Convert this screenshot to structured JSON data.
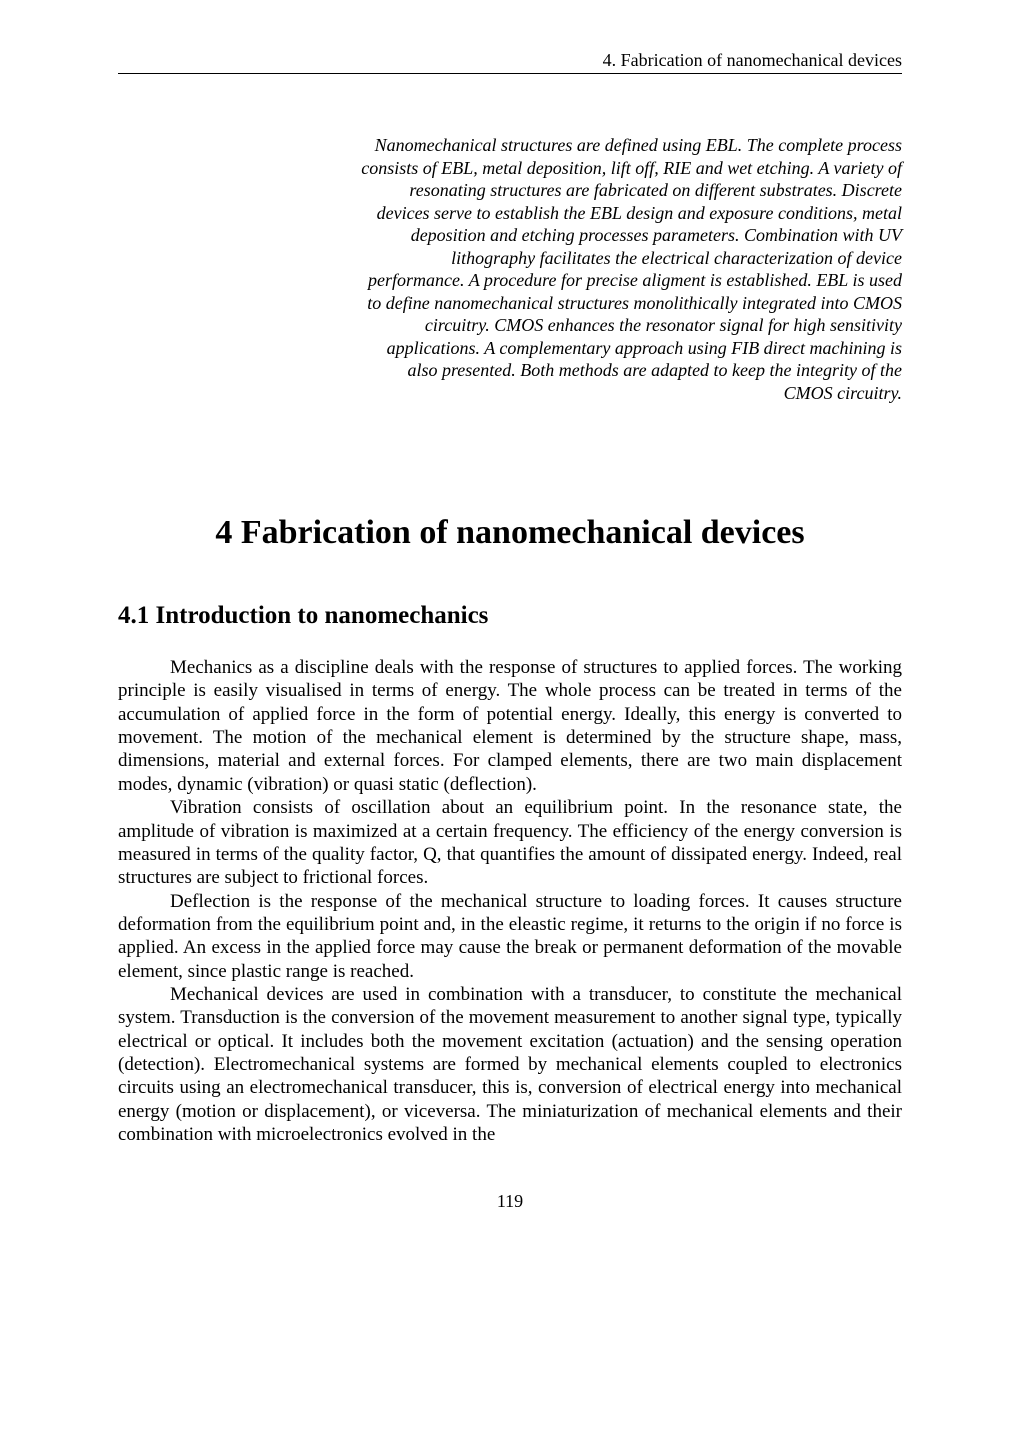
{
  "running_head": "4. Fabrication of nanomechanical devices",
  "abstract": "Nanomechanical structures are defined using EBL. The complete process consists of EBL, metal deposition, lift off, RIE and wet etching. A variety of resonating structures are fabricated on different substrates. Discrete devices serve to establish the EBL design and exposure conditions, metal deposition and etching processes parameters. Combination with UV lithography facilitates the electrical characterization of device performance. A procedure for precise aligment is established. EBL is used to define nanomechanical structures monolithically integrated into CMOS circuitry. CMOS  enhances the resonator signal for high sensitivity applications. A complementary approach using FIB direct machining is also presented. Both methods are adapted to keep the integrity of the CMOS circuitry.",
  "chapter_title": "4 Fabrication of nanomechanical devices",
  "section_title": "4.1  Introduction to nanomechanics",
  "paragraphs": {
    "p1": "Mechanics as a discipline deals with the response of structures to applied forces. The working principle is easily visualised in terms of energy. The whole process can be treated in terms of the accumulation of applied force in the form of potential energy. Ideally, this energy is converted to movement. The motion of the mechanical element is determined by the structure shape, mass, dimensions, material and external forces. For clamped elements, there are two main displacement modes, dynamic (vibration) or quasi static (deflection).",
    "p2": "Vibration consists of oscillation about an equilibrium point. In the resonance state, the amplitude of vibration is maximized at a certain frequency. The efficiency of the energy conversion is measured in terms of the quality factor, Q, that quantifies the amount of dissipated energy. Indeed, real structures are subject to frictional forces.",
    "p3": "Deflection is the response of the mechanical structure to loading forces. It causes structure deformation from the equilibrium point and, in the eleastic regime, it returns to the origin if no force is applied. An excess in the applied force may cause the break or permanent deformation of the movable element, since plastic range is reached.",
    "p4": "Mechanical devices are used in combination with a transducer, to constitute the mechanical system. Transduction is the conversion of the movement measurement to another signal type, typically electrical or optical. It includes both the movement excitation (actuation) and the sensing operation (detection). Electromechanical systems are formed by mechanical elements coupled to electronics circuits using an electromechanical transducer, this is, conversion of electrical energy into mechanical energy (motion or displacement), or viceversa. The miniaturization of mechanical elements and their combination with microelectronics evolved in the"
  },
  "page_number": "119"
}
